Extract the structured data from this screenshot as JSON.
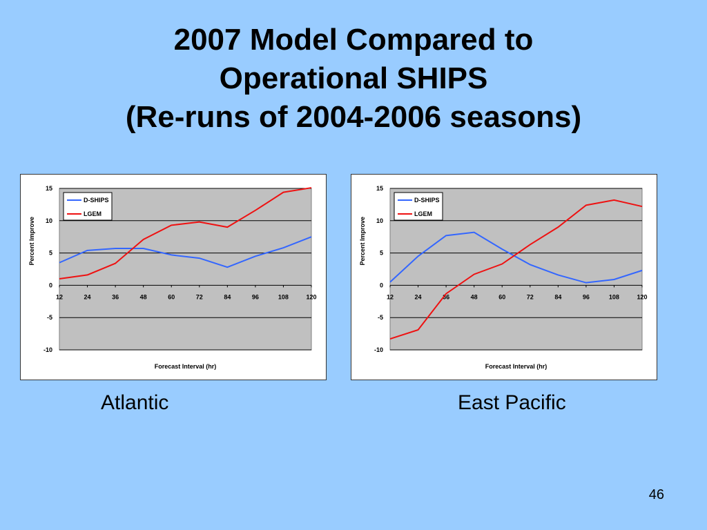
{
  "slide": {
    "title_lines": [
      "2007 Model Compared to",
      "Operational SHIPS",
      "(Re-runs of 2004-2006 seasons)"
    ],
    "captions": [
      "Atlantic",
      "East Pacific"
    ],
    "page_number": "46"
  },
  "chart_data": [
    {
      "type": "line",
      "title": "",
      "xlabel": "Forecast Interval (hr)",
      "ylabel": "Percent Improve",
      "x": [
        12,
        24,
        36,
        48,
        60,
        72,
        84,
        96,
        108,
        120
      ],
      "ylim": [
        -10,
        15
      ],
      "yticks": [
        15,
        10,
        5,
        0,
        -5,
        -10
      ],
      "grid": true,
      "legend": "top-left",
      "series": [
        {
          "name": "D-SHIPS",
          "color": "#3366ff",
          "values": [
            3.5,
            5.4,
            5.7,
            5.7,
            4.7,
            4.2,
            2.8,
            4.5,
            5.8,
            7.5
          ]
        },
        {
          "name": "LGEM",
          "color": "#ee1111",
          "values": [
            1.0,
            1.6,
            3.4,
            7.1,
            9.3,
            9.8,
            9.0,
            11.6,
            14.4,
            15.1
          ]
        }
      ]
    },
    {
      "type": "line",
      "title": "",
      "xlabel": "Forecast Interval (hr)",
      "ylabel": "Percent Improve",
      "x": [
        12,
        24,
        36,
        48,
        60,
        72,
        84,
        96,
        108,
        120
      ],
      "ylim": [
        -10,
        15
      ],
      "yticks": [
        15,
        10,
        5,
        0,
        -5,
        -10
      ],
      "grid": true,
      "legend": "top-left",
      "series": [
        {
          "name": "D-SHIPS",
          "color": "#3366ff",
          "values": [
            0.5,
            4.5,
            7.7,
            8.2,
            5.6,
            3.2,
            1.6,
            0.4,
            0.9,
            2.3
          ]
        },
        {
          "name": "LGEM",
          "color": "#ee1111",
          "values": [
            -8.3,
            -6.9,
            -1.3,
            1.7,
            3.3,
            6.3,
            9.0,
            12.4,
            13.2,
            12.2
          ]
        }
      ]
    }
  ]
}
